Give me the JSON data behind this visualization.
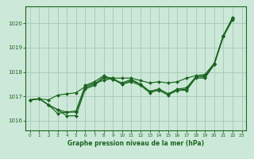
{
  "background_color": "#cce8d8",
  "grid_color": "#aaccbc",
  "line_color": "#1a6620",
  "marker_color": "#1a6620",
  "xlabel": "Graphe pression niveau de la mer (hPa)",
  "ylim": [
    1015.6,
    1020.7
  ],
  "xlim": [
    -0.5,
    23.5
  ],
  "yticks": [
    1016,
    1017,
    1018,
    1019,
    1020
  ],
  "xticks": [
    0,
    1,
    2,
    3,
    4,
    5,
    6,
    7,
    8,
    9,
    10,
    11,
    12,
    13,
    14,
    15,
    16,
    17,
    18,
    19,
    20,
    21,
    22,
    23
  ],
  "series": [
    {
      "y": [
        1016.85,
        1016.9,
        1016.85,
        1017.05,
        1017.1,
        1017.15,
        1017.4,
        1017.55,
        1017.65,
        1017.75,
        1017.75,
        1017.75,
        1017.65,
        1017.55,
        1017.6,
        1017.55,
        1017.6,
        1017.75,
        1017.85,
        1017.9,
        1018.35,
        1019.5,
        1020.2,
        null
      ]
    },
    {
      "y": [
        1016.85,
        1016.9,
        1016.65,
        1016.3,
        1016.35,
        1016.4,
        1017.45,
        1017.6,
        1017.85,
        1017.7,
        1017.55,
        1017.7,
        1017.5,
        1017.2,
        1017.3,
        1017.1,
        1017.3,
        1017.35,
        1017.8,
        1017.85,
        1018.35,
        1019.5,
        1020.25,
        null
      ]
    },
    {
      "y": [
        1016.85,
        1016.9,
        1016.65,
        1016.45,
        1016.35,
        1016.35,
        1017.35,
        1017.5,
        1017.8,
        1017.75,
        1017.5,
        1017.65,
        1017.5,
        1017.2,
        1017.3,
        1017.1,
        1017.25,
        1017.3,
        1017.8,
        1017.8,
        1018.3,
        1019.5,
        1020.2,
        null
      ]
    },
    {
      "y": [
        1016.85,
        1016.9,
        1016.65,
        1016.45,
        1016.2,
        1016.2,
        1017.3,
        1017.45,
        1017.75,
        1017.7,
        1017.5,
        1017.6,
        1017.45,
        1017.15,
        1017.25,
        1017.05,
        1017.25,
        1017.25,
        1017.75,
        1017.75,
        1018.3,
        1019.45,
        1020.15,
        null
      ]
    }
  ],
  "x": [
    0,
    1,
    2,
    3,
    4,
    5,
    6,
    7,
    8,
    9,
    10,
    11,
    12,
    13,
    14,
    15,
    16,
    17,
    18,
    19,
    20,
    21,
    22,
    23
  ]
}
